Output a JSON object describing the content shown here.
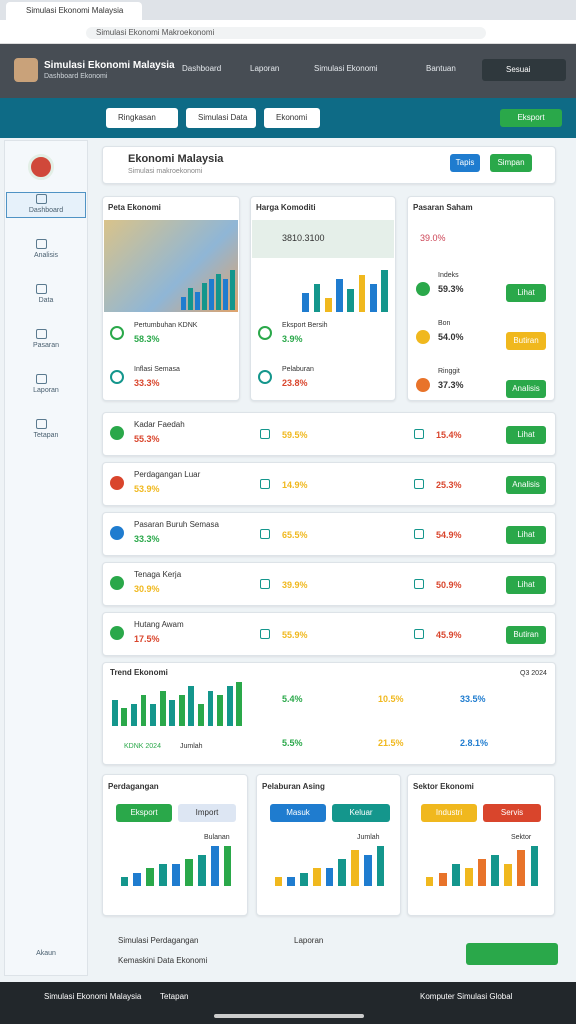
{
  "browser": {
    "tab": "Simulasi Ekonomi Malaysia",
    "url": "Simulasi Ekonomi Makroekonomi"
  },
  "header": {
    "app": "Simulasi Ekonomi Malaysia",
    "subtitle": "Dashboard Ekonomi",
    "items": [
      "Dashboard",
      "Laporan",
      "Simulasi Ekonomi",
      "Bantuan"
    ],
    "user": "Sesuai"
  },
  "toolbar": {
    "tabs": [
      "Ringkasan",
      "Simulasi Data",
      "Ekonomi"
    ],
    "action": "Eksport"
  },
  "sidebar": {
    "items": [
      "Dashboard",
      "Analisis",
      "Data",
      "Pasaran",
      "Laporan",
      "Tetapan"
    ],
    "footer": "Akaun"
  },
  "page": {
    "title": "Ekonomi Malaysia",
    "subtitle": "Simulasi makroekonomi",
    "buttons": [
      "Tapis",
      "Simpan"
    ]
  },
  "top_cards": [
    {
      "title": "Peta Ekonomi",
      "stats": [
        {
          "label": "Pertumbuhan KDNK",
          "value": "58.3%"
        },
        {
          "label": "Inflasi Semasa",
          "value": "33.3%"
        }
      ],
      "bars": [
        3,
        5,
        4,
        6,
        7,
        8,
        7,
        9
      ]
    },
    {
      "title": "Harga Komoditi",
      "headline": "3810.3100",
      "stats": [
        {
          "label": "Eksport Bersih",
          "value": "3.9%"
        },
        {
          "label": "Pelaburan",
          "value": "23.8%"
        }
      ],
      "bars": [
        4,
        6,
        3,
        7,
        5,
        8,
        6,
        9
      ]
    },
    {
      "title": "Pasaran Saham",
      "headline": "39.0%",
      "stats": [
        {
          "label": "Indeks",
          "value": "59.3%",
          "button": "Lihat"
        },
        {
          "label": "Bon",
          "value": "54.0%",
          "button": "Butiran"
        },
        {
          "label": "Ringgit",
          "value": "37.3%",
          "button": "Analisis"
        }
      ]
    }
  ],
  "rows": [
    {
      "label": "Kadar Faedah",
      "value": "55.3%",
      "items": [
        "59.5%",
        "15.4%"
      ],
      "button": "Lihat"
    },
    {
      "label": "Perdagangan Luar",
      "value": "53.9%",
      "items": [
        "14.9%",
        "25.3%"
      ],
      "button": "Analisis"
    },
    {
      "label": "Pasaran Buruh Semasa",
      "value": "33.3%",
      "items": [
        "65.5%",
        "54.9%"
      ],
      "button": "Lihat"
    },
    {
      "label": "Tenaga Kerja",
      "value": "30.9%",
      "items": [
        "39.9%",
        "50.9%"
      ],
      "button": "Lihat"
    },
    {
      "label": "Hutang Awam",
      "value": "17.5%",
      "items": [
        "55.9%",
        "45.9%"
      ],
      "button": "Butiran"
    }
  ],
  "trend": {
    "title": "Trend Ekonomi",
    "note": "Q3 2024",
    "bars": [
      6,
      4,
      5,
      7,
      5,
      8,
      6,
      7,
      9,
      5,
      8,
      7,
      9,
      10
    ],
    "labels": [
      "KDNK 2024",
      "Jumlah"
    ],
    "stats": [
      "5.4%",
      "10.5%",
      "33.5%",
      "5.5%",
      "21.5%",
      "2.8.1%"
    ]
  },
  "bottom_charts": [
    {
      "title": "Perdagangan",
      "buttons": [
        "Eksport",
        "Import"
      ],
      "note": "Bulanan",
      "bars": [
        2,
        3,
        4,
        5,
        5,
        6,
        7,
        9,
        9
      ]
    },
    {
      "title": "Pelaburan Asing",
      "buttons": [
        "Masuk",
        "Keluar"
      ],
      "note": "Jumlah",
      "bars": [
        2,
        2,
        3,
        4,
        4,
        6,
        8,
        7,
        9
      ]
    },
    {
      "title": "Sektor Ekonomi",
      "buttons": [
        "Industri",
        "Servis"
      ],
      "note": "Sektor",
      "bars": [
        2,
        3,
        5,
        4,
        6,
        7,
        5,
        8,
        9
      ]
    }
  ],
  "footer_links": [
    "Simulasi Perdagangan",
    "Kemaskini Data Ekonomi",
    "Laporan"
  ],
  "taskbar": {
    "app": "Simulasi Ekonomi Malaysia",
    "item": "Tetapan",
    "right": "Komputer Simulasi Global"
  }
}
